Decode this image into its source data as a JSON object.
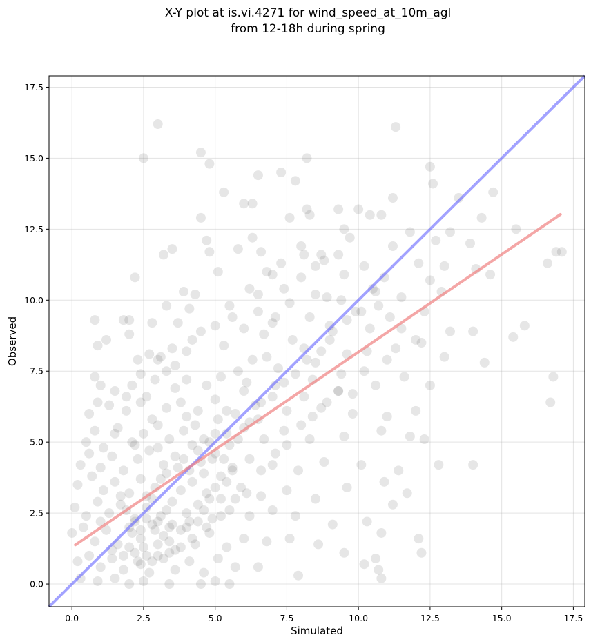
{
  "chart_data": {
    "type": "scatter",
    "title_lines": [
      "X-Y plot at is.vi.4271 for wind_speed_at_10m_agl",
      "from 12-18h during spring"
    ],
    "xlabel": "Simulated",
    "ylabel": "Observed",
    "xlim": [
      -0.8,
      17.9
    ],
    "ylim": [
      -0.8,
      17.9
    ],
    "xticks": [
      "0.0",
      "2.5",
      "5.0",
      "7.5",
      "10.0",
      "12.5",
      "15.0",
      "17.5"
    ],
    "yticks": [
      "0.0",
      "2.5",
      "5.0",
      "7.5",
      "10.0",
      "12.5",
      "15.0",
      "17.5"
    ],
    "grid": true,
    "point_color": "#3a3a3a",
    "one_to_one_color": "#6464ff",
    "fit_color": "#f08080",
    "one_to_one_line": {
      "x": [
        -0.8,
        17.9
      ],
      "y": [
        -0.8,
        17.9
      ]
    },
    "fit_line": {
      "x": [
        0.12,
        17.05
      ],
      "y": [
        1.38,
        13.02
      ]
    },
    "points": [
      [
        3.0,
        16.2
      ],
      [
        2.5,
        15.0
      ],
      [
        4.5,
        15.2
      ],
      [
        4.8,
        14.8
      ],
      [
        8.2,
        15.0
      ],
      [
        11.3,
        16.1
      ],
      [
        5.3,
        13.8
      ],
      [
        6.5,
        14.4
      ],
      [
        7.3,
        14.5
      ],
      [
        7.8,
        14.2
      ],
      [
        6.0,
        13.4
      ],
      [
        6.3,
        13.4
      ],
      [
        8.2,
        13.2
      ],
      [
        9.3,
        13.2
      ],
      [
        10.0,
        13.2
      ],
      [
        10.4,
        13.0
      ],
      [
        11.2,
        13.6
      ],
      [
        12.5,
        14.7
      ],
      [
        12.6,
        14.1
      ],
      [
        13.5,
        13.6
      ],
      [
        14.7,
        13.8
      ],
      [
        4.5,
        12.9
      ],
      [
        7.6,
        12.9
      ],
      [
        8.3,
        13.0
      ],
      [
        10.8,
        13.0
      ],
      [
        11.8,
        12.4
      ],
      [
        13.2,
        12.4
      ],
      [
        14.3,
        12.9
      ],
      [
        15.5,
        12.5
      ],
      [
        4.7,
        12.1
      ],
      [
        6.3,
        12.2
      ],
      [
        9.5,
        12.5
      ],
      [
        12.7,
        12.1
      ],
      [
        13.9,
        12.0
      ],
      [
        16.6,
        11.3
      ],
      [
        16.9,
        11.7
      ],
      [
        17.1,
        11.7
      ],
      [
        3.2,
        11.6
      ],
      [
        3.5,
        11.8
      ],
      [
        4.8,
        11.7
      ],
      [
        5.8,
        11.8
      ],
      [
        6.6,
        11.7
      ],
      [
        8.1,
        11.6
      ],
      [
        8.8,
        11.4
      ],
      [
        10.2,
        11.2
      ],
      [
        11.2,
        11.9
      ],
      [
        12.1,
        11.3
      ],
      [
        13.0,
        11.2
      ],
      [
        14.1,
        11.1
      ],
      [
        2.2,
        10.8
      ],
      [
        5.1,
        11.0
      ],
      [
        6.8,
        11.0
      ],
      [
        9.5,
        10.9
      ],
      [
        10.9,
        10.8
      ],
      [
        12.5,
        10.7
      ],
      [
        14.6,
        10.9
      ],
      [
        3.9,
        10.3
      ],
      [
        4.3,
        10.2
      ],
      [
        6.2,
        10.4
      ],
      [
        7.4,
        10.4
      ],
      [
        8.5,
        10.2
      ],
      [
        9.4,
        10.0
      ],
      [
        10.6,
        10.3
      ],
      [
        11.5,
        10.1
      ],
      [
        12.9,
        10.3
      ],
      [
        1.8,
        9.3
      ],
      [
        2.0,
        9.3
      ],
      [
        2.8,
        9.2
      ],
      [
        3.3,
        9.8
      ],
      [
        3.7,
        9.2
      ],
      [
        4.1,
        9.7
      ],
      [
        5.6,
        9.4
      ],
      [
        6.5,
        9.6
      ],
      [
        7.0,
        9.2
      ],
      [
        8.3,
        9.4
      ],
      [
        9.0,
        9.1
      ],
      [
        10.4,
        9.0
      ],
      [
        11.1,
        9.4
      ],
      [
        12.3,
        9.6
      ],
      [
        13.2,
        8.9
      ],
      [
        14.0,
        8.9
      ],
      [
        15.8,
        9.1
      ],
      [
        0.8,
        9.3
      ],
      [
        0.9,
        8.4
      ],
      [
        1.2,
        8.6
      ],
      [
        2.0,
        8.8
      ],
      [
        2.3,
        7.9
      ],
      [
        3.0,
        7.9
      ],
      [
        3.5,
        8.3
      ],
      [
        4.2,
        8.6
      ],
      [
        5.3,
        8.4
      ],
      [
        6.8,
        8.0
      ],
      [
        8.1,
        8.3
      ],
      [
        9.6,
        8.1
      ],
      [
        11.3,
        8.3
      ],
      [
        12.2,
        8.5
      ],
      [
        13.0,
        8.0
      ],
      [
        14.4,
        7.8
      ],
      [
        15.4,
        8.7
      ],
      [
        0.8,
        7.3
      ],
      [
        1.0,
        7.0
      ],
      [
        1.5,
        6.8
      ],
      [
        2.1,
        7.0
      ],
      [
        2.6,
        6.6
      ],
      [
        2.9,
        7.2
      ],
      [
        3.3,
        7.5
      ],
      [
        3.6,
        6.9
      ],
      [
        4.0,
        7.2
      ],
      [
        4.7,
        7.0
      ],
      [
        5.2,
        7.3
      ],
      [
        6.1,
        7.1
      ],
      [
        7.1,
        7.0
      ],
      [
        8.4,
        7.2
      ],
      [
        9.3,
        6.8
      ],
      [
        10.6,
        7.0
      ],
      [
        11.6,
        7.3
      ],
      [
        12.5,
        7.0
      ],
      [
        16.8,
        7.3
      ],
      [
        0.6,
        6.0
      ],
      [
        0.9,
        6.4
      ],
      [
        1.3,
        6.3
      ],
      [
        1.9,
        6.1
      ],
      [
        2.4,
        6.4
      ],
      [
        2.8,
        5.8
      ],
      [
        3.3,
        6.2
      ],
      [
        3.8,
        6.4
      ],
      [
        4.4,
        6.1
      ],
      [
        5.0,
        6.5
      ],
      [
        5.7,
        6.0
      ],
      [
        6.4,
        6.3
      ],
      [
        7.5,
        6.1
      ],
      [
        8.7,
        6.2
      ],
      [
        9.8,
        6.0
      ],
      [
        11.0,
        5.9
      ],
      [
        12.0,
        6.1
      ],
      [
        16.7,
        6.4
      ],
      [
        0.5,
        5.0
      ],
      [
        0.8,
        5.4
      ],
      [
        1.1,
        4.8
      ],
      [
        1.6,
        5.5
      ],
      [
        2.1,
        5.0
      ],
      [
        2.5,
        5.3
      ],
      [
        3.0,
        5.6
      ],
      [
        3.4,
        5.1
      ],
      [
        3.9,
        5.4
      ],
      [
        4.3,
        5.6
      ],
      [
        4.8,
        5.0
      ],
      [
        5.4,
        5.3
      ],
      [
        6.0,
        5.5
      ],
      [
        6.7,
        5.1
      ],
      [
        7.4,
        5.4
      ],
      [
        8.3,
        5.1
      ],
      [
        9.5,
        5.2
      ],
      [
        10.8,
        5.4
      ],
      [
        11.8,
        5.2
      ],
      [
        12.3,
        5.1
      ],
      [
        0.3,
        4.2
      ],
      [
        0.6,
        4.6
      ],
      [
        1.0,
        4.1
      ],
      [
        1.4,
        4.5
      ],
      [
        1.8,
        4.0
      ],
      [
        2.3,
        4.4
      ],
      [
        2.7,
        4.7
      ],
      [
        3.2,
        4.2
      ],
      [
        3.6,
        4.5
      ],
      [
        4.1,
        4.0
      ],
      [
        4.5,
        4.3
      ],
      [
        5.0,
        4.6
      ],
      [
        5.6,
        4.1
      ],
      [
        6.2,
        4.4
      ],
      [
        7.0,
        4.2
      ],
      [
        7.9,
        4.0
      ],
      [
        8.8,
        4.3
      ],
      [
        10.1,
        4.2
      ],
      [
        11.4,
        4.0
      ],
      [
        12.8,
        4.2
      ],
      [
        14.0,
        4.2
      ],
      [
        0.2,
        3.5
      ],
      [
        0.7,
        3.8
      ],
      [
        1.1,
        3.3
      ],
      [
        1.5,
        3.6
      ],
      [
        2.0,
        3.2
      ],
      [
        2.4,
        3.7
      ],
      [
        2.9,
        3.4
      ],
      [
        3.3,
        3.9
      ],
      [
        3.8,
        3.3
      ],
      [
        4.2,
        3.6
      ],
      [
        4.7,
        3.2
      ],
      [
        5.2,
        3.8
      ],
      [
        5.9,
        3.4
      ],
      [
        6.6,
        3.1
      ],
      [
        7.5,
        3.3
      ],
      [
        8.5,
        3.0
      ],
      [
        9.6,
        3.4
      ],
      [
        10.9,
        3.6
      ],
      [
        11.7,
        3.2
      ],
      [
        0.1,
        2.7
      ],
      [
        0.5,
        2.4
      ],
      [
        0.9,
        2.9
      ],
      [
        1.3,
        2.5
      ],
      [
        1.7,
        2.8
      ],
      [
        2.2,
        2.3
      ],
      [
        2.6,
        2.7
      ],
      [
        3.1,
        2.4
      ],
      [
        3.5,
        2.9
      ],
      [
        4.0,
        2.5
      ],
      [
        4.4,
        2.8
      ],
      [
        4.9,
        2.3
      ],
      [
        5.5,
        2.6
      ],
      [
        6.2,
        2.4
      ],
      [
        7.0,
        2.6
      ],
      [
        7.8,
        2.4
      ],
      [
        9.1,
        2.1
      ],
      [
        10.3,
        2.2
      ],
      [
        11.2,
        2.8
      ],
      [
        0.0,
        1.8
      ],
      [
        0.4,
        2.0
      ],
      [
        0.8,
        1.5
      ],
      [
        1.2,
        1.9
      ],
      [
        1.6,
        1.4
      ],
      [
        2.1,
        1.8
      ],
      [
        2.5,
        1.3
      ],
      [
        2.9,
        1.9
      ],
      [
        3.4,
        1.5
      ],
      [
        3.8,
        1.9
      ],
      [
        4.3,
        1.4
      ],
      [
        4.8,
        1.8
      ],
      [
        5.4,
        1.3
      ],
      [
        6.0,
        1.6
      ],
      [
        6.8,
        1.5
      ],
      [
        7.6,
        1.6
      ],
      [
        8.6,
        1.4
      ],
      [
        9.5,
        1.1
      ],
      [
        10.8,
        1.8
      ],
      [
        12.1,
        1.6
      ],
      [
        12.2,
        1.1
      ],
      [
        0.2,
        0.8
      ],
      [
        0.6,
        1.0
      ],
      [
        1.0,
        0.6
      ],
      [
        1.4,
        0.9
      ],
      [
        1.8,
        0.5
      ],
      [
        2.3,
        0.8
      ],
      [
        2.7,
        0.4
      ],
      [
        3.2,
        0.9
      ],
      [
        3.6,
        0.5
      ],
      [
        4.1,
        0.8
      ],
      [
        4.6,
        0.4
      ],
      [
        5.1,
        0.9
      ],
      [
        5.7,
        0.6
      ],
      [
        6.5,
        0.6
      ],
      [
        7.9,
        0.3
      ],
      [
        10.2,
        0.7
      ],
      [
        10.6,
        0.9
      ],
      [
        10.7,
        0.5
      ],
      [
        10.8,
        0.2
      ],
      [
        0.3,
        0.2
      ],
      [
        0.9,
        0.1
      ],
      [
        1.5,
        0.2
      ],
      [
        2.0,
        0.0
      ],
      [
        2.5,
        0.1
      ],
      [
        3.4,
        0.0
      ],
      [
        4.5,
        0.0
      ],
      [
        5.0,
        0.1
      ],
      [
        5.5,
        0.0
      ],
      [
        1.7,
        3.1
      ],
      [
        2.2,
        4.9
      ],
      [
        2.6,
        3.1
      ],
      [
        3.0,
        4.8
      ],
      [
        3.5,
        2.1
      ],
      [
        4.0,
        5.9
      ],
      [
        4.6,
        5.1
      ],
      [
        5.1,
        5.8
      ],
      [
        5.5,
        4.9
      ],
      [
        6.0,
        6.8
      ],
      [
        6.5,
        5.8
      ],
      [
        7.2,
        7.6
      ],
      [
        7.7,
        8.6
      ],
      [
        8.1,
        6.6
      ],
      [
        8.5,
        7.8
      ],
      [
        9.0,
        8.6
      ],
      [
        9.4,
        7.4
      ],
      [
        9.9,
        9.6
      ],
      [
        10.3,
        8.2
      ],
      [
        10.7,
        9.8
      ],
      [
        11.0,
        7.9
      ],
      [
        11.5,
        9.0
      ],
      [
        12.0,
        8.6
      ],
      [
        1.0,
        2.2
      ],
      [
        1.4,
        1.2
      ],
      [
        1.9,
        2.6
      ],
      [
        2.4,
        1.6
      ],
      [
        2.8,
        3.0
      ],
      [
        3.3,
        2.6
      ],
      [
        3.7,
        4.1
      ],
      [
        4.2,
        4.9
      ],
      [
        4.6,
        3.9
      ],
      [
        5.0,
        5.3
      ],
      [
        5.4,
        6.1
      ],
      [
        5.8,
        7.5
      ],
      [
        6.3,
        7.9
      ],
      [
        6.7,
        8.8
      ],
      [
        7.1,
        9.4
      ],
      [
        7.6,
        9.9
      ],
      [
        8.0,
        10.8
      ],
      [
        8.5,
        11.2
      ],
      [
        8.9,
        10.1
      ],
      [
        9.3,
        11.6
      ],
      [
        9.7,
        12.2
      ],
      [
        3.1,
        3.7
      ],
      [
        3.9,
        4.4
      ],
      [
        4.4,
        4.7
      ],
      [
        4.9,
        4.4
      ],
      [
        5.3,
        4.4
      ],
      [
        5.8,
        5.1
      ],
      [
        6.2,
        5.7
      ],
      [
        6.6,
        6.4
      ],
      [
        7.0,
        6.6
      ],
      [
        7.4,
        7.1
      ],
      [
        7.8,
        7.4
      ],
      [
        8.2,
        7.9
      ],
      [
        8.7,
        8.2
      ],
      [
        9.1,
        8.9
      ],
      [
        9.6,
        9.3
      ],
      [
        10.1,
        9.6
      ],
      [
        10.5,
        10.4
      ],
      [
        3.0,
        1.0
      ],
      [
        3.6,
        1.2
      ],
      [
        4.1,
        2.2
      ],
      [
        4.7,
        2.0
      ],
      [
        5.2,
        2.4
      ],
      [
        5.7,
        3.0
      ],
      [
        6.1,
        3.2
      ],
      [
        6.6,
        4.0
      ],
      [
        7.1,
        4.6
      ],
      [
        7.5,
        4.9
      ],
      [
        8.0,
        5.6
      ],
      [
        8.4,
        5.9
      ],
      [
        8.9,
        6.4
      ],
      [
        9.3,
        6.8
      ],
      [
        9.8,
        6.7
      ],
      [
        10.2,
        7.5
      ],
      [
        1.5,
        5.3
      ],
      [
        1.9,
        6.6
      ],
      [
        2.4,
        7.4
      ],
      [
        2.7,
        8.1
      ],
      [
        3.1,
        8.0
      ],
      [
        3.6,
        7.7
      ],
      [
        4.0,
        8.2
      ],
      [
        4.5,
        8.9
      ],
      [
        5.0,
        9.1
      ],
      [
        5.5,
        9.8
      ],
      [
        6.0,
        9.0
      ],
      [
        6.5,
        10.2
      ],
      [
        7.0,
        10.9
      ],
      [
        7.3,
        11.3
      ],
      [
        8.0,
        11.9
      ],
      [
        8.7,
        11.6
      ],
      [
        2.0,
        2.0
      ],
      [
        2.2,
        2.2
      ],
      [
        2.4,
        1.9
      ],
      [
        2.6,
        2.3
      ],
      [
        2.8,
        2.1
      ],
      [
        3.0,
        2.2
      ],
      [
        3.2,
        1.7
      ],
      [
        3.4,
        2.0
      ],
      [
        1.8,
        1.0
      ],
      [
        2.0,
        1.3
      ],
      [
        2.2,
        1.1
      ],
      [
        2.4,
        0.7
      ],
      [
        2.6,
        1.0
      ],
      [
        2.8,
        0.8
      ],
      [
        3.0,
        1.4
      ],
      [
        3.4,
        1.1
      ],
      [
        3.8,
        1.3
      ],
      [
        4.0,
        2.0
      ],
      [
        4.2,
        1.6
      ],
      [
        4.4,
        2.2
      ],
      [
        4.6,
        2.6
      ],
      [
        4.8,
        3.0
      ],
      [
        5.0,
        3.4
      ],
      [
        5.2,
        3.0
      ],
      [
        5.4,
        3.6
      ],
      [
        5.6,
        4.0
      ]
    ]
  }
}
